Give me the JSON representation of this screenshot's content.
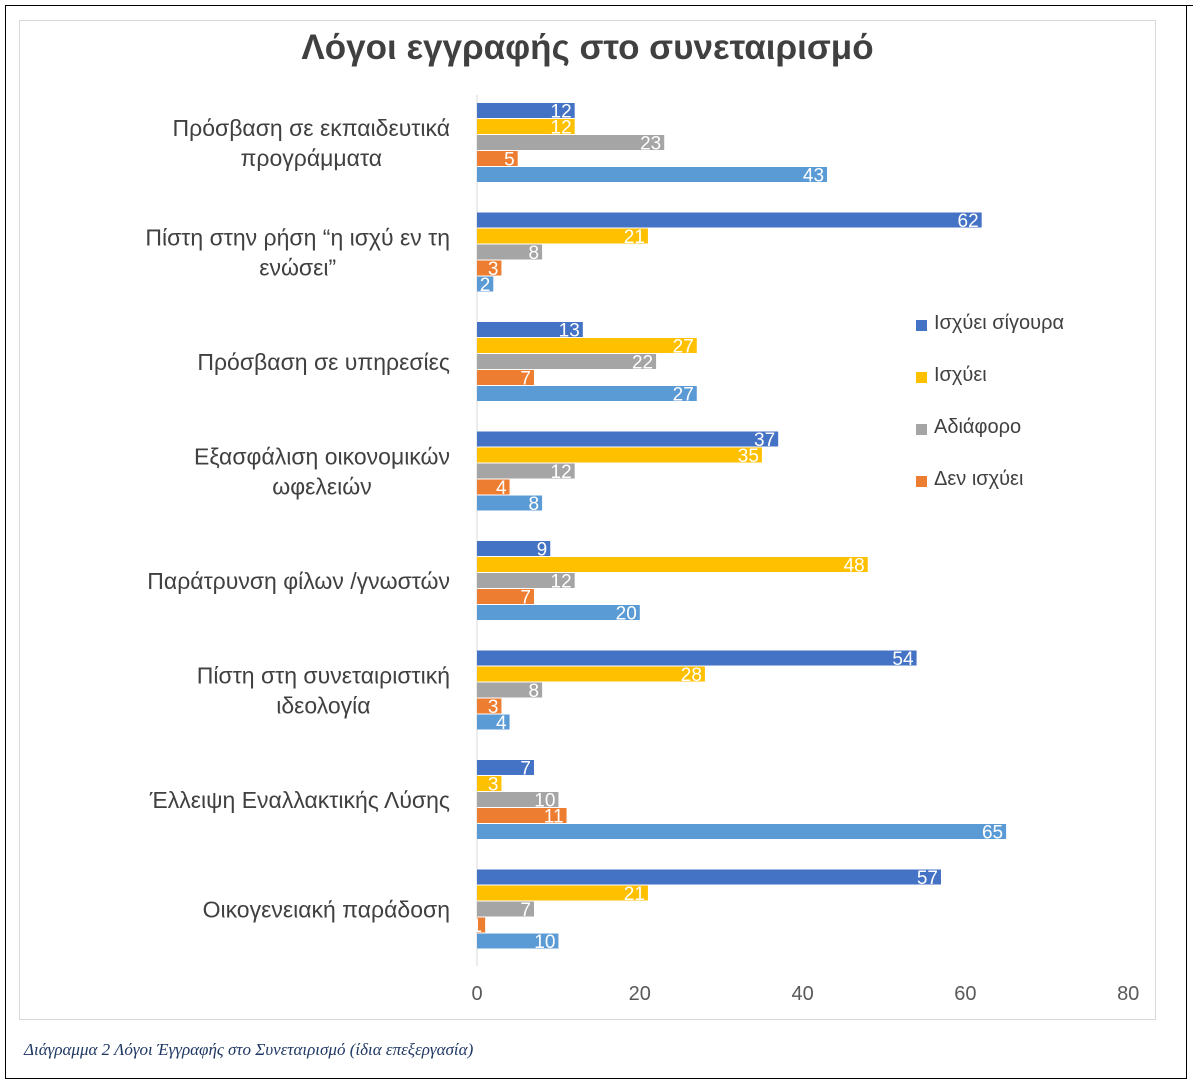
{
  "caption": "Διάγραμμα 2 Λόγοι Έγγραφής στο Συνεταιρισμό (ίδια επεξεργασία)",
  "chart_data": {
    "type": "bar",
    "orientation": "horizontal",
    "title": "Λόγοι εγγραφής στο συνεταιρισμό",
    "categories": [
      [
        "Πρόσβαση σε εκπαιδευτικά",
        "προγράμματα"
      ],
      [
        "Πίστη στην ρήση “η ισχύ εν τη",
        "ενώσει”"
      ],
      [
        "Πρόσβαση σε υπηρεσίες"
      ],
      [
        "Εξασφάλιση οικονομικών",
        "ωφελειών"
      ],
      [
        "Παράτρυνση φίλων /γνωστών"
      ],
      [
        "Πίστη στη συνεταιριστική",
        "ιδεολογία"
      ],
      [
        "Έλλειψη Εναλλακτικής Λύσης"
      ],
      [
        "Οικογενειακή παράδοση"
      ]
    ],
    "series": [
      {
        "name": "Ισχύει σίγουρα",
        "color": "#4472c4",
        "values": [
          12,
          62,
          13,
          37,
          9,
          54,
          7,
          57
        ],
        "in_legend": true
      },
      {
        "name": "Ισχύει",
        "color": "#ffc000",
        "values": [
          12,
          21,
          27,
          35,
          48,
          28,
          3,
          21
        ],
        "in_legend": true
      },
      {
        "name": "Αδιάφορο",
        "color": "#a5a5a5",
        "values": [
          23,
          8,
          22,
          12,
          12,
          8,
          10,
          7
        ],
        "in_legend": true
      },
      {
        "name": "Δεν ισχύει",
        "color": "#ed7d31",
        "values": [
          5,
          3,
          7,
          4,
          7,
          3,
          11,
          1
        ],
        "in_legend": true
      },
      {
        "name": "",
        "color": "#5b9bd5",
        "values": [
          43,
          2,
          27,
          8,
          20,
          4,
          65,
          10
        ],
        "in_legend": false
      }
    ],
    "xlim": [
      0,
      80
    ],
    "xticks": [
      "0",
      "20",
      "40",
      "60",
      "80"
    ],
    "grid": false,
    "legend_position": "right"
  }
}
